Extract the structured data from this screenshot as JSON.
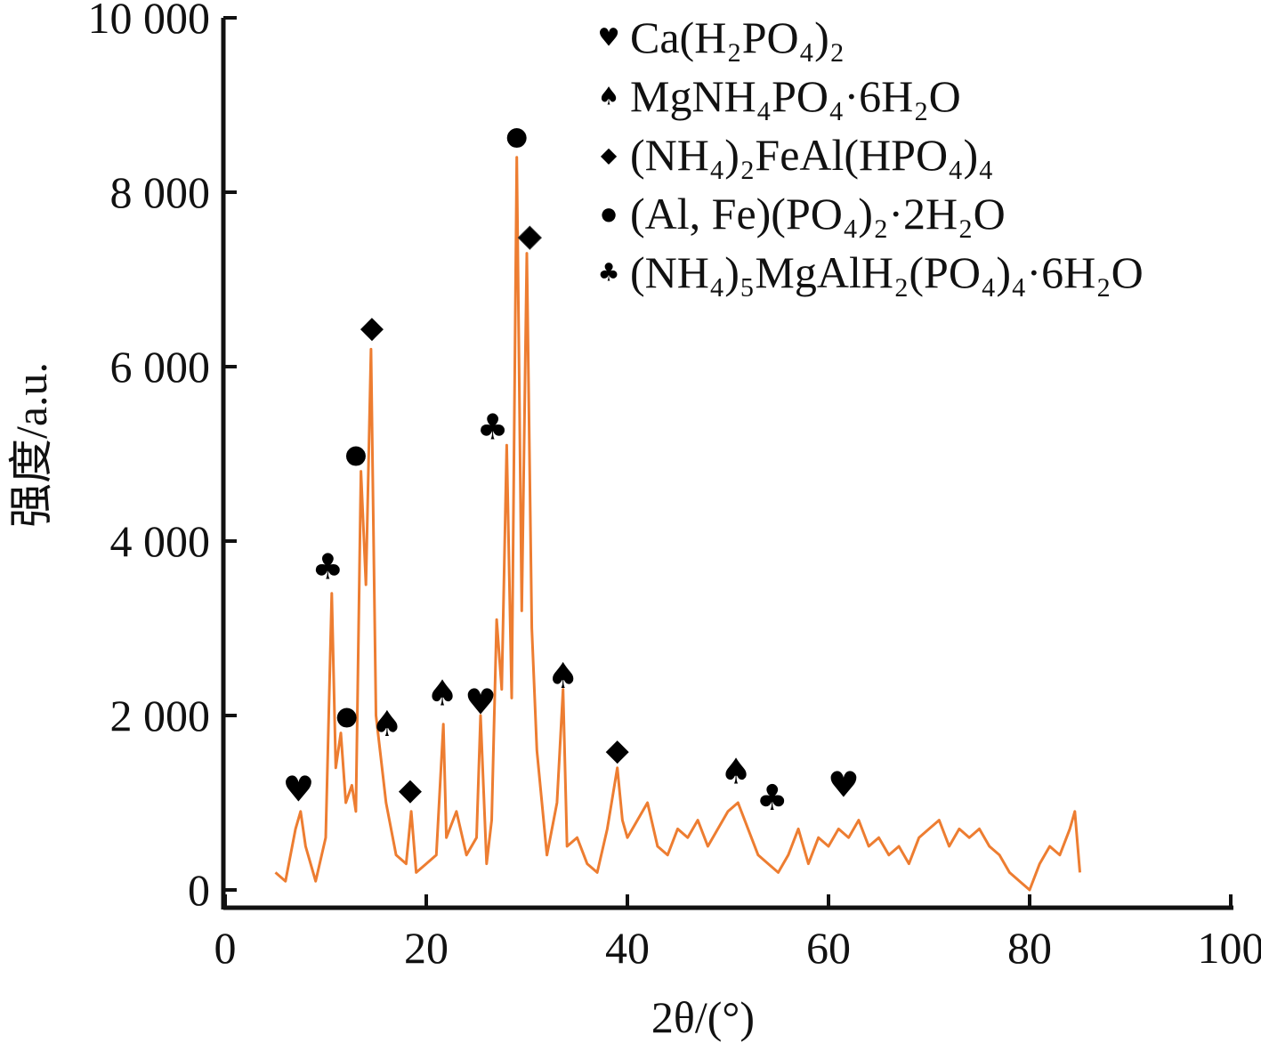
{
  "chart_data": {
    "type": "line",
    "xlabel": "2θ/(°)",
    "ylabel": "强度/a.u.",
    "xlim": [
      0,
      100
    ],
    "ylim": [
      0,
      10000
    ],
    "x_ticks": [
      0,
      20,
      40,
      60,
      80,
      100
    ],
    "x_tick_labels": [
      "0",
      "20",
      "40",
      "60",
      "80",
      "100"
    ],
    "y_ticks": [
      0,
      2000,
      4000,
      6000,
      8000,
      10000
    ],
    "y_tick_labels": [
      "0",
      "2 000",
      "4 000",
      "6 000",
      "8 000",
      "10 000"
    ],
    "line_color": "#ed7d31",
    "grid": false,
    "legend_position": "top-right",
    "legend": [
      {
        "symbol": "heart",
        "label": "Ca(H₂PO₄)₂"
      },
      {
        "symbol": "spade",
        "label": "MgNH₄PO₄·6H₂O"
      },
      {
        "symbol": "diamond",
        "label": "(NH₄)₂FeAl(HPO₄)₄"
      },
      {
        "symbol": "circle",
        "label": "(Al, Fe)(PO₄)₂·2H₂O"
      },
      {
        "symbol": "club",
        "label": "(NH₄)₅MgAlH₂(PO₄)₄·6H₂O"
      }
    ],
    "series": [
      {
        "x": [
          5,
          6,
          7,
          7.5,
          8,
          9,
          10,
          10.6,
          11,
          11.5,
          12,
          12.6,
          13,
          13.5,
          14,
          14.5,
          15,
          15.6,
          16,
          17,
          18,
          18.5,
          19,
          20,
          21,
          21.7,
          22,
          23,
          24,
          25,
          25.4,
          26,
          26.5,
          27,
          27.5,
          28,
          28.5,
          29,
          29.5,
          30,
          30.5,
          31,
          32,
          33,
          33.6,
          34,
          35,
          36,
          37,
          38,
          39,
          39.5,
          40,
          41,
          42,
          43,
          44,
          45,
          46,
          47,
          48,
          49,
          50,
          51,
          52,
          53,
          54,
          55,
          56,
          57,
          58,
          59,
          60,
          61,
          62,
          63,
          64,
          65,
          66,
          67,
          68,
          69,
          70,
          71,
          72,
          73,
          74,
          75,
          76,
          77,
          78,
          79,
          80,
          81,
          82,
          83,
          84,
          84.5,
          85
        ],
        "y": [
          200,
          100,
          700,
          900,
          500,
          100,
          600,
          3400,
          1400,
          1800,
          1000,
          1200,
          900,
          4800,
          3500,
          6200,
          2000,
          1400,
          1000,
          400,
          300,
          900,
          200,
          300,
          400,
          1900,
          600,
          900,
          400,
          600,
          2000,
          300,
          800,
          3100,
          2300,
          5100,
          2200,
          8400,
          3200,
          7300,
          3000,
          1600,
          400,
          1000,
          2300,
          500,
          600,
          300,
          200,
          700,
          1400,
          800,
          600,
          800,
          1000,
          500,
          400,
          700,
          600,
          800,
          500,
          700,
          900,
          1000,
          700,
          400,
          300,
          200,
          400,
          700,
          300,
          600,
          500,
          700,
          600,
          800,
          500,
          600,
          400,
          500,
          300,
          600,
          700,
          800,
          500,
          700,
          600,
          700,
          500,
          400,
          200,
          100,
          0,
          300,
          500,
          400,
          700,
          900,
          200
        ]
      }
    ],
    "peak_markers": [
      {
        "symbol": "heart",
        "x": 7.3,
        "y": 1150
      },
      {
        "symbol": "club",
        "x": 10.2,
        "y": 3700
      },
      {
        "symbol": "circle",
        "x": 12.1,
        "y": 2000
      },
      {
        "symbol": "circle",
        "x": 13.0,
        "y": 5000
      },
      {
        "symbol": "diamond",
        "x": 14.6,
        "y": 6450
      },
      {
        "symbol": "spade",
        "x": 16.1,
        "y": 1900
      },
      {
        "symbol": "diamond",
        "x": 18.4,
        "y": 1150
      },
      {
        "symbol": "spade",
        "x": 21.6,
        "y": 2250
      },
      {
        "symbol": "heart",
        "x": 25.4,
        "y": 2150
      },
      {
        "symbol": "club",
        "x": 26.6,
        "y": 5300
      },
      {
        "symbol": "circle",
        "x": 29.0,
        "y": 8650
      },
      {
        "symbol": "diamond",
        "x": 30.3,
        "y": 7500,
        "highlight": true
      },
      {
        "symbol": "spade",
        "x": 33.6,
        "y": 2450
      },
      {
        "symbol": "diamond",
        "x": 39.0,
        "y": 1600
      },
      {
        "symbol": "spade",
        "x": 50.8,
        "y": 1350
      },
      {
        "symbol": "club",
        "x": 54.4,
        "y": 1050
      },
      {
        "symbol": "heart",
        "x": 61.5,
        "y": 1200
      }
    ]
  }
}
